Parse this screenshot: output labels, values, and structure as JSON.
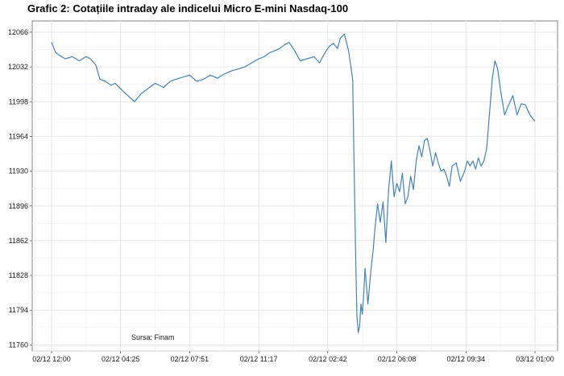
{
  "chart_data": {
    "type": "line",
    "title": "Grafic 2: Cotațiile intraday ale indicelui Micro E-mini Nasdaq-100",
    "xlabel": "",
    "ylabel": "",
    "source_note": "Sursa: Finam",
    "grid": true,
    "legend": "none",
    "line_color": "#4682b4",
    "y_ticks": [
      11760,
      11794,
      11828,
      11862,
      11896,
      11930,
      11964,
      11998,
      12032,
      12066
    ],
    "ylim": [
      11754,
      12077
    ],
    "x_tick_labels": [
      "02/12 12:00",
      "02/12 04:25",
      "02/12 07:51",
      "02/12 11:17",
      "02/12 02:42",
      "02/12 06:08",
      "02/12 09:34",
      "03/12 01:00"
    ],
    "x_index_range": [
      0,
      7
    ],
    "series": [
      {
        "x": [
          0.0,
          0.06,
          0.12,
          0.2,
          0.3,
          0.4,
          0.5,
          0.56,
          0.64,
          0.7,
          0.78,
          0.86,
          0.92,
          1.04,
          1.12,
          1.2,
          1.3,
          1.38,
          1.5,
          1.62,
          1.72,
          1.8,
          1.9,
          2.0,
          2.1,
          2.2,
          2.3,
          2.4,
          2.5,
          2.6,
          2.7,
          2.8,
          2.9,
          3.0,
          3.08,
          3.16,
          3.24,
          3.3,
          3.38,
          3.44,
          3.52,
          3.6,
          3.7,
          3.8,
          3.88,
          3.96,
          4.02,
          4.08,
          4.14,
          4.18,
          4.24,
          4.3,
          4.36,
          4.38,
          4.4,
          4.42,
          4.44,
          4.46,
          4.48,
          4.5,
          4.52,
          4.54,
          4.58,
          4.62,
          4.66,
          4.68,
          4.72,
          4.76,
          4.8,
          4.84,
          4.88,
          4.92,
          4.96,
          5.0,
          5.04,
          5.08,
          5.12,
          5.16,
          5.2,
          5.24,
          5.28,
          5.32,
          5.36,
          5.4,
          5.44,
          5.48,
          5.52,
          5.56,
          5.6,
          5.64,
          5.68,
          5.72,
          5.76,
          5.8,
          5.86,
          5.92,
          5.98,
          6.02,
          6.06,
          6.1,
          6.14,
          6.18,
          6.22,
          6.26,
          6.3,
          6.34,
          6.38,
          6.42,
          6.46,
          6.5,
          6.56,
          6.62,
          6.68,
          6.74,
          6.8,
          6.86,
          6.92,
          6.96,
          7.0
        ],
        "y": [
          12056,
          12046,
          12043,
          12040,
          12042,
          12038,
          12042,
          12040,
          12034,
          12020,
          12018,
          12014,
          12016,
          12008,
          12003,
          11998,
          12006,
          12010,
          12016,
          12012,
          12018,
          12020,
          12022,
          12024,
          12018,
          12020,
          12024,
          12021,
          12025,
          12028,
          12030,
          12032,
          12036,
          12040,
          12042,
          12046,
          12048,
          12050,
          12054,
          12056,
          12048,
          12038,
          12040,
          12042,
          12036,
          12046,
          12052,
          12055,
          12050,
          12060,
          12064,
          12048,
          12020,
          11940,
          11860,
          11790,
          11772,
          11778,
          11800,
          11790,
          11810,
          11835,
          11800,
          11830,
          11855,
          11872,
          11898,
          11880,
          11900,
          11860,
          11912,
          11940,
          11905,
          11918,
          11910,
          11928,
          11898,
          11905,
          11925,
          11912,
          11940,
          11955,
          11944,
          11960,
          11962,
          11950,
          11935,
          11948,
          11938,
          11930,
          11932,
          11925,
          11915,
          11935,
          11938,
          11920,
          11930,
          11940,
          11935,
          11940,
          11932,
          11943,
          11935,
          11940,
          11952,
          11985,
          12020,
          12038,
          12030,
          12010,
          11985,
          11995,
          12004,
          11985,
          11996,
          11995,
          11986,
          11982,
          11979
        ]
      }
    ]
  }
}
